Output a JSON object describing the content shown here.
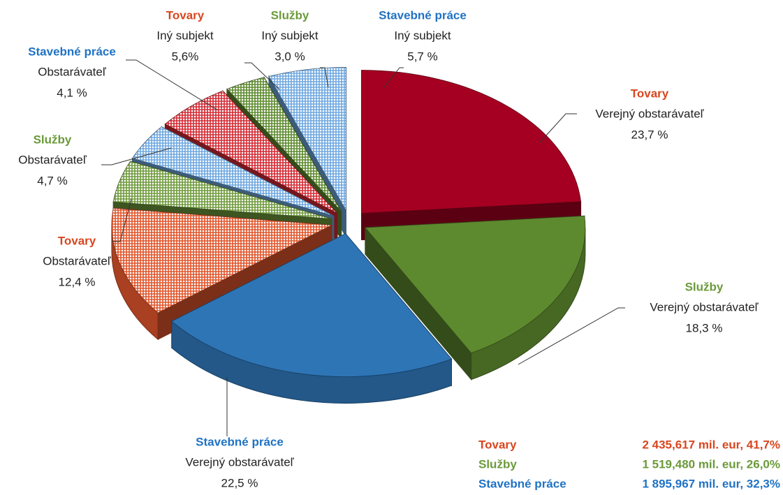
{
  "chart_data": {
    "type": "pie",
    "groups": [
      "Tovary",
      "Služby",
      "Stavebné práce",
      "Tovary",
      "Služby",
      "Stavebné práce",
      "Tovary",
      "Služby",
      "Stavebné práce"
    ],
    "categories": [
      "Verejný obstarávateľ",
      "Verejný obstarávateľ",
      "Verejný obstarávateľ",
      "Obstarávateľ",
      "Obstarávateľ",
      "Obstarávateľ",
      "Iný subjekt",
      "Iný subjekt",
      "Iný subjekt"
    ],
    "values": [
      23.7,
      18.3,
      22.5,
      12.4,
      4.7,
      4.1,
      5.6,
      3.0,
      5.7
    ],
    "value_labels": [
      "23,7 %",
      "18,3 %",
      "22,5 %",
      "12,4 %",
      "4,7 %",
      "4,1 %",
      "5,6%",
      "3,0 %",
      "5,7 %"
    ],
    "colors": [
      "#a50021",
      "#5e8a2f",
      "#2e75b6",
      "#e0552c",
      "#6f9a3c",
      "#6fa8e0",
      "#d42a34",
      "#5e8a2f",
      "#6fa8e0"
    ],
    "hatched": [
      false,
      false,
      false,
      true,
      true,
      true,
      true,
      true,
      true
    ],
    "exploded": true,
    "summary": [
      {
        "name": "Tovary",
        "text": "2 435,617 mil. eur, 41,7%",
        "color": "#d9461f"
      },
      {
        "name": "Služby",
        "text": "1 519,480 mil. eur, 26,0%",
        "color": "#6b9a3a"
      },
      {
        "name": "Stavebné práce",
        "text": "1 895,967 mil. eur, 32,3%",
        "color": "#1f72c4"
      }
    ]
  }
}
